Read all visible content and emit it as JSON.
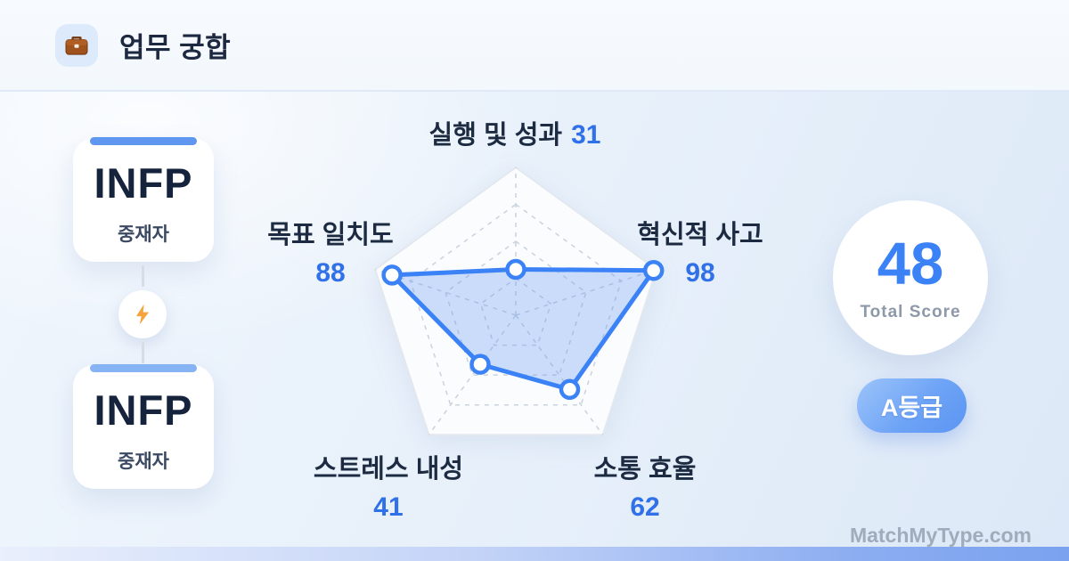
{
  "header": {
    "title": "업무 궁합",
    "icon": "briefcase-icon"
  },
  "pair": {
    "top_card": {
      "type": "INFP",
      "nickname": "중재자"
    },
    "bottom_card": {
      "type": "INFP",
      "nickname": "중재자"
    },
    "connector_icon": "lightning-icon"
  },
  "chart_data": {
    "type": "radar",
    "categories": [
      "실행 및 성과",
      "혁신적 사고",
      "소통 효율",
      "스트레스 내성",
      "목표 일치도"
    ],
    "values": [
      31,
      98,
      62,
      41,
      88
    ],
    "max": 100,
    "grid_rings": [
      0.25,
      0.5,
      0.75
    ],
    "grid_on": true,
    "line_color": "#3b82f6",
    "fill_color": "rgba(104,152,242,0.32)",
    "marker_fill": "#ffffff",
    "grid_color": "#c9d2dd",
    "outer_fill": "#fbfcfe",
    "outer_stroke": "#e3e8ef"
  },
  "score": {
    "value": "48",
    "label": "Total Score",
    "grade": "A등급"
  },
  "watermark": "MatchMyType.com",
  "colors": {
    "accent_blue": "#3b82f6",
    "value_blue": "#3070e8",
    "title_navy": "#1c2940",
    "badge_gradient_start": "#9dc4fa",
    "badge_gradient_end": "#5b95f2",
    "topbar_blue_strong": "#5e96f0",
    "topbar_blue_light": "#85b3f4",
    "bolt_orange": "#f6a33c"
  }
}
